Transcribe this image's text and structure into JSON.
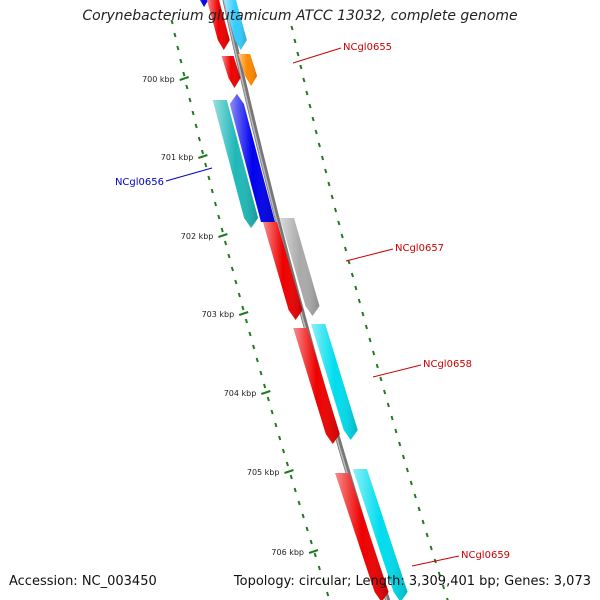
{
  "title": "Corynebacterium glutamicum ATCC 13032, complete genome",
  "footer": {
    "accession": "Accession: NC_003450",
    "summary": "Topology: circular; Length: 3,309,401 bp; Genes: 3,073"
  },
  "colors": {
    "backbone": "#8c8c8c",
    "tick": "#1f7a1f",
    "label_red": "#cc0000",
    "label_blue": "#0000cc"
  },
  "kbp_ticks": [
    "700 kbp",
    "701 kbp",
    "702 kbp",
    "703 kbp",
    "704 kbp",
    "705 kbp",
    "706 kbp"
  ],
  "gene_labels": [
    {
      "text": "NCgl0655",
      "color": "#cc0000"
    },
    {
      "text": "NCgl0656",
      "color": "#0000cc"
    },
    {
      "text": "NCgl0657",
      "color": "#cc0000"
    },
    {
      "text": "NCgl0658",
      "color": "#cc0000"
    },
    {
      "text": "NCgl0659",
      "color": "#cc0000"
    }
  ],
  "features": [
    {
      "name": "blue-cds-top",
      "color": "#0000ee"
    },
    {
      "name": "red-cds-top",
      "color": "#ee0000"
    },
    {
      "name": "cyan-cds-top",
      "color": "#33ccff"
    },
    {
      "name": "red-cds-0655",
      "color": "#ee0000"
    },
    {
      "name": "orange-cds-0655",
      "color": "#ff8800"
    },
    {
      "name": "teal-cds-0656",
      "color": "#1fb8b8"
    },
    {
      "name": "blue-cds-0656",
      "color": "#0000ee"
    },
    {
      "name": "red-cds-0657",
      "color": "#ee0000"
    },
    {
      "name": "gray-cds-0657",
      "color": "#aaaaaa"
    },
    {
      "name": "red-cds-0658",
      "color": "#ee0000"
    },
    {
      "name": "cyan-cds-0658",
      "color": "#00ddee"
    },
    {
      "name": "red-cds-0659",
      "color": "#ee0000"
    },
    {
      "name": "cyan-cds-0659",
      "color": "#00ddee"
    }
  ]
}
